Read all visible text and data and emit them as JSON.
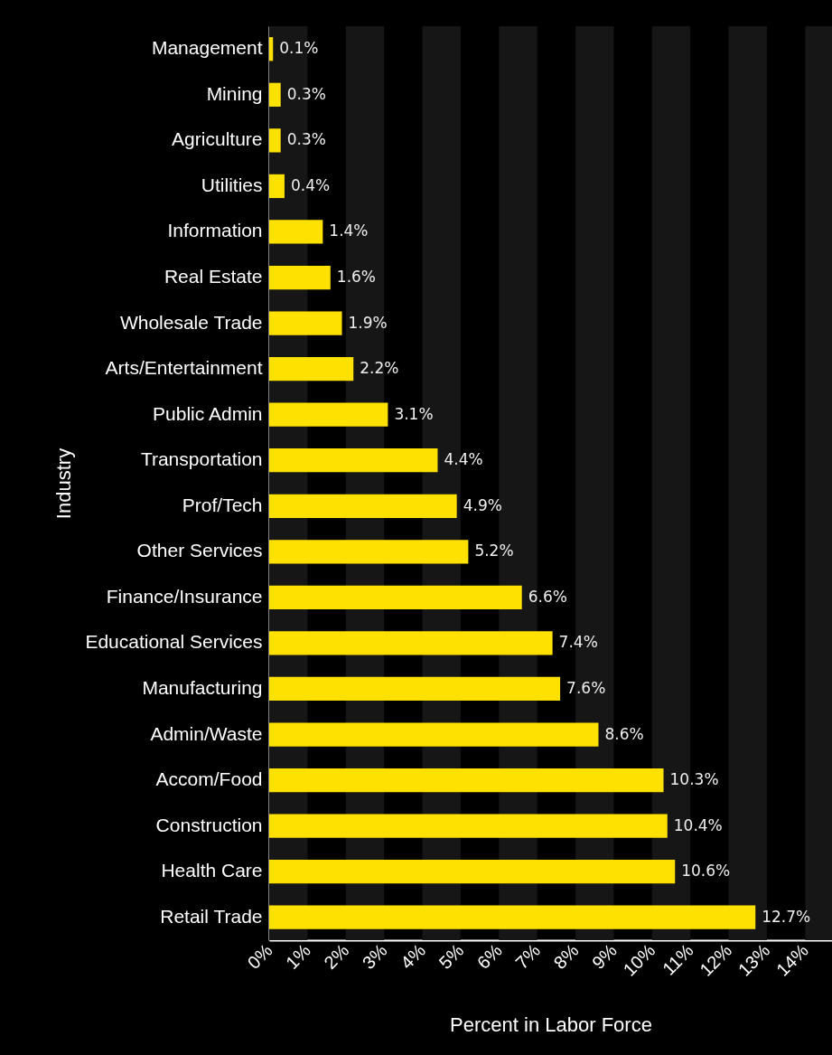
{
  "chart_data": {
    "type": "bar",
    "orientation": "horizontal",
    "xlabel": "Percent in Labor Force",
    "ylabel": "Industry",
    "categories": [
      "Management",
      "Mining",
      "Agriculture",
      "Utilities",
      "Information",
      "Real Estate",
      "Wholesale Trade",
      "Arts/Entertainment",
      "Public Admin",
      "Transportation",
      "Prof/Tech",
      "Other Services",
      "Finance/Insurance",
      "Educational Services",
      "Manufacturing",
      "Admin/Waste",
      "Accom/Food",
      "Construction",
      "Health Care",
      "Retail Trade"
    ],
    "values": [
      0.1,
      0.3,
      0.3,
      0.4,
      1.4,
      1.6,
      1.9,
      2.2,
      3.1,
      4.4,
      4.9,
      5.2,
      6.6,
      7.4,
      7.6,
      8.6,
      10.3,
      10.4,
      10.6,
      12.7
    ],
    "value_labels": [
      "0.1%",
      "0.3%",
      "0.3%",
      "0.4%",
      "1.4%",
      "1.6%",
      "1.9%",
      "2.2%",
      "3.1%",
      "4.4%",
      "4.9%",
      "5.2%",
      "6.6%",
      "7.4%",
      "7.6%",
      "8.6%",
      "10.3%",
      "10.4%",
      "10.6%",
      "12.7%"
    ],
    "color": "#ffe100",
    "xlim": [
      0,
      14.7
    ],
    "xticks": [
      {
        "value": 0,
        "label": "0%"
      },
      {
        "value": 1,
        "label": "1%"
      },
      {
        "value": 2,
        "label": "2%"
      },
      {
        "value": 3,
        "label": "3%"
      },
      {
        "value": 4,
        "label": "4%"
      },
      {
        "value": 5,
        "label": "5%"
      },
      {
        "value": 6,
        "label": "6%"
      },
      {
        "value": 7,
        "label": "7%"
      },
      {
        "value": 8,
        "label": "8%"
      },
      {
        "value": 9,
        "label": "9%"
      },
      {
        "value": 10,
        "label": "10%"
      },
      {
        "value": 11,
        "label": "11%"
      },
      {
        "value": 12,
        "label": "12%"
      },
      {
        "value": 13,
        "label": "13%"
      },
      {
        "value": 14,
        "label": "14%"
      }
    ],
    "bands": [
      {
        "axis": "x",
        "from": 0,
        "to": 1,
        "color": "#161616"
      },
      {
        "axis": "x",
        "from": 2,
        "to": 3,
        "color": "#161616"
      },
      {
        "axis": "x",
        "from": 4,
        "to": 5,
        "color": "#161616"
      },
      {
        "axis": "x",
        "from": 6,
        "to": 7,
        "color": "#161616"
      },
      {
        "axis": "x",
        "from": 8,
        "to": 9,
        "color": "#161616"
      },
      {
        "axis": "x",
        "from": 10,
        "to": 11,
        "color": "#161616"
      },
      {
        "axis": "x",
        "from": 12,
        "to": 13,
        "color": "#161616"
      },
      {
        "axis": "x",
        "from": 14,
        "to": 14.7,
        "color": "#161616"
      }
    ],
    "grid": false
  }
}
